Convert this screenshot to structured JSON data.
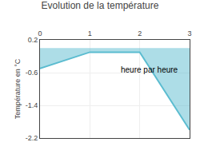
{
  "chart_data": {
    "type": "line",
    "title": "Evolution de la température",
    "y_label": "Température en °C",
    "x": [
      0,
      1,
      2,
      3
    ],
    "series": [
      {
        "color": "#5bbcd0",
        "values": [
          -0.5,
          -0.1,
          -0.1,
          -2.0
        ]
      }
    ],
    "xlim": [
      0,
      3
    ],
    "xticks": [
      0,
      1,
      2,
      3
    ],
    "ylim": [
      -2.2,
      0.2
    ],
    "yticks": [
      0.2,
      -0.6,
      -1.4,
      -2.2
    ],
    "grid": true,
    "annotations": [
      {
        "text": "heure par heure",
        "x": 2.2,
        "y": -0.38
      }
    ]
  }
}
